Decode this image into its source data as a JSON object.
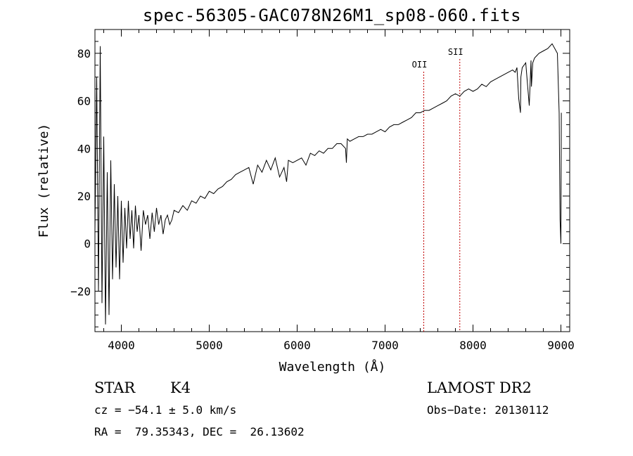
{
  "chart_data": {
    "type": "line",
    "title": "spec-56305-GAC078N26M1_sp08-060.fits",
    "xlabel": "Wavelength (Å)",
    "ylabel": "Flux (relative)",
    "xlim": [
      3700,
      9100
    ],
    "ylim": [
      -37,
      90
    ],
    "x_ticks": [
      4000,
      5000,
      6000,
      7000,
      8000,
      9000
    ],
    "y_ticks": [
      -20,
      0,
      20,
      40,
      60,
      80
    ],
    "grid": false,
    "series": [
      {
        "color": "#000000",
        "x": [
          3700,
          3720,
          3740,
          3760,
          3780,
          3800,
          3820,
          3840,
          3860,
          3880,
          3900,
          3920,
          3940,
          3960,
          3980,
          4000,
          4020,
          4040,
          4060,
          4080,
          4100,
          4120,
          4140,
          4160,
          4180,
          4200,
          4225,
          4250,
          4275,
          4300,
          4325,
          4350,
          4375,
          4400,
          4425,
          4450,
          4475,
          4500,
          4525,
          4550,
          4575,
          4600,
          4650,
          4700,
          4750,
          4800,
          4850,
          4900,
          4950,
          5000,
          5050,
          5100,
          5150,
          5200,
          5250,
          5300,
          5350,
          5400,
          5450,
          5500,
          5550,
          5600,
          5650,
          5700,
          5750,
          5800,
          5850,
          5880,
          5900,
          5950,
          6000,
          6050,
          6100,
          6150,
          6200,
          6250,
          6300,
          6350,
          6400,
          6450,
          6500,
          6550,
          6560,
          6570,
          6600,
          6650,
          6700,
          6750,
          6800,
          6850,
          6900,
          6950,
          7000,
          7050,
          7100,
          7150,
          7200,
          7250,
          7300,
          7350,
          7400,
          7450,
          7500,
          7550,
          7600,
          7650,
          7700,
          7750,
          7800,
          7850,
          7900,
          7950,
          8000,
          8050,
          8100,
          8150,
          8200,
          8250,
          8300,
          8350,
          8400,
          8450,
          8480,
          8500,
          8520,
          8540,
          8545,
          8560,
          8600,
          8640,
          8660,
          8665,
          8680,
          8700,
          8750,
          8800,
          8850,
          8900,
          8930,
          8960,
          8980,
          8990,
          9000,
          9005
        ],
        "y": [
          5,
          70,
          -20,
          83,
          -25,
          45,
          -34,
          30,
          -30,
          35,
          -15,
          25,
          -10,
          20,
          -15,
          18,
          -8,
          15,
          -2,
          18,
          2,
          14,
          -2,
          16,
          5,
          12,
          -3,
          14,
          8,
          12,
          2,
          13,
          5,
          15,
          8,
          12,
          4,
          10,
          12,
          8,
          10,
          14,
          13,
          16,
          14,
          18,
          17,
          20,
          19,
          22,
          21,
          23,
          24,
          26,
          27,
          29,
          30,
          31,
          32,
          25,
          33,
          30,
          35,
          31,
          36,
          28,
          32,
          26,
          35,
          34,
          35,
          36,
          33,
          38,
          37,
          39,
          38,
          40,
          40,
          42,
          42,
          40,
          34,
          44,
          43,
          44,
          45,
          45,
          46,
          46,
          47,
          48,
          47,
          49,
          50,
          50,
          51,
          52,
          53,
          55,
          55,
          56,
          56,
          57,
          58,
          59,
          60,
          62,
          63,
          62,
          64,
          65,
          64,
          65,
          67,
          66,
          68,
          69,
          70,
          71,
          72,
          73,
          72,
          74,
          61,
          55,
          70,
          74,
          76,
          58,
          77,
          66,
          76,
          78,
          80,
          81,
          82,
          84,
          82,
          80,
          55,
          10,
          0,
          55
        ]
      }
    ],
    "markers": [
      {
        "label": "OII",
        "x": 7440
      },
      {
        "label": "SII",
        "x": 7850
      }
    ]
  },
  "info": {
    "object_class": "STAR",
    "subclass": "K4",
    "survey": "LAMOST DR2",
    "cz": "cz = −54.1 ± 5.0 km/s",
    "obs_date": "Obs−Date: 20130112",
    "coords": "RA =  79.35343, DEC =  26.13602"
  }
}
